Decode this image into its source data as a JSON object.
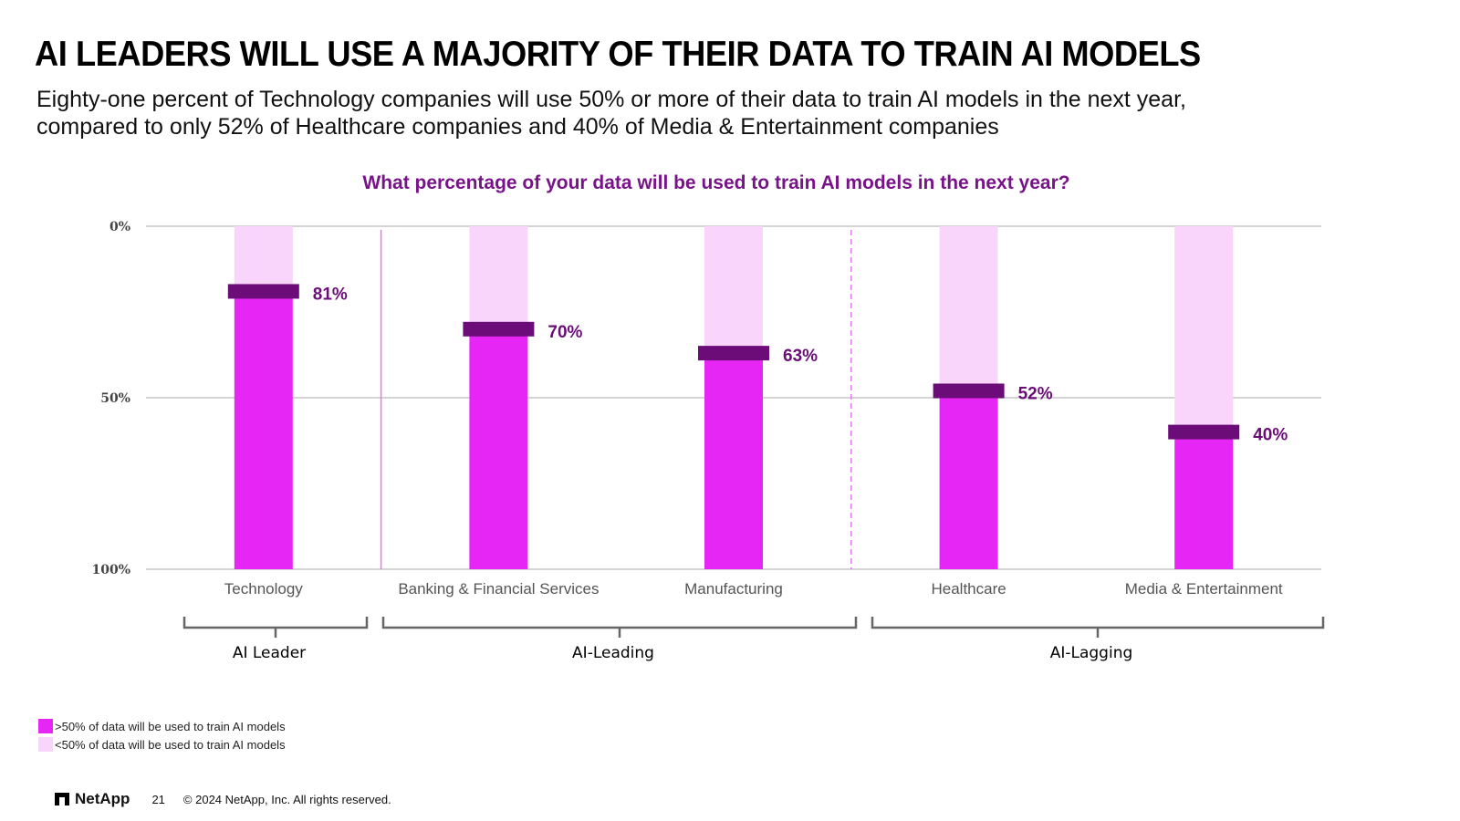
{
  "title": "AI LEADERS WILL USE A MAJORITY OF THEIR DATA TO TRAIN AI MODELS",
  "subtitle": {
    "line1": "Eighty-one percent of Technology companies will use 50% or more of their data to train AI models in the next year,",
    "line2": "compared to only 52% of Healthcare companies and 40% of Media & Entertainment companies"
  },
  "colors": {
    "primary": "#e626f5",
    "light": "#f9d5fc",
    "marker": "#6b0c79",
    "title_purple": "#78138a"
  },
  "chart_data": {
    "type": "bar",
    "title": "What percentage of your data will be used to train AI models in the next year?",
    "categories": [
      "Technology",
      "Banking & Financial Services",
      "Manufacturing",
      "Healthcare",
      "Media & Entertainment"
    ],
    "values": [
      81,
      70,
      63,
      52,
      40
    ],
    "value_labels": [
      "81%",
      "70%",
      "63%",
      "52%",
      "40%"
    ],
    "ylim": [
      0,
      100
    ],
    "y_inverted": true,
    "y_ticks": [
      0,
      50,
      100
    ],
    "y_tick_labels": [
      "0%",
      "50%",
      "100%"
    ],
    "groups": [
      {
        "label": "AI Leader",
        "categories": [
          "Technology"
        ]
      },
      {
        "label": "AI-Leading",
        "categories": [
          "Banking & Financial Services",
          "Manufacturing"
        ]
      },
      {
        "label": "AI-Lagging",
        "categories": [
          "Healthcare",
          "Media & Entertainment"
        ]
      }
    ],
    "legend": [
      {
        "label": ">50% of data will be used to train AI models",
        "color": "#e626f5"
      },
      {
        "label": "<50% of data will be used to train AI models",
        "color": "#f9d5fc"
      }
    ],
    "grid": true
  },
  "footer": {
    "brand": "NetApp",
    "page": "21",
    "copyright": "© 2024 NetApp, Inc. All rights reserved."
  }
}
